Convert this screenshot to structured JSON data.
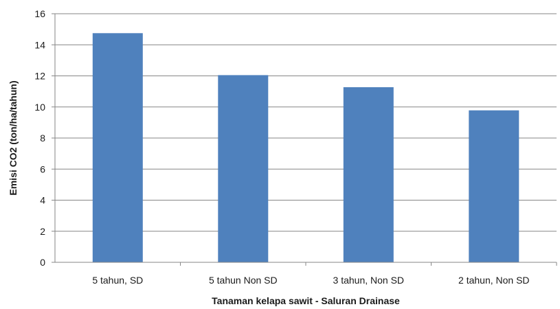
{
  "chart_data": {
    "type": "bar",
    "title": "",
    "categories": [
      "5 tahun, SD",
      "5 tahun Non SD",
      "3 tahun, Non SD",
      "2 tahun, Non SD"
    ],
    "values": [
      14.75,
      12.05,
      11.27,
      9.78
    ],
    "xlabel": "Tanaman kelapa sawit - Saluran Drainase",
    "ylabel": "Emisi CO2 (ton/ha/tahun)",
    "ylim": [
      0,
      16
    ],
    "yticks": [
      0,
      2,
      4,
      6,
      8,
      10,
      12,
      14,
      16
    ],
    "grid": true,
    "legend": "none",
    "colors": {
      "bar": "#4f81bd",
      "grid": "#868686",
      "axis": "#868686",
      "text": "#1a1a1a"
    }
  }
}
